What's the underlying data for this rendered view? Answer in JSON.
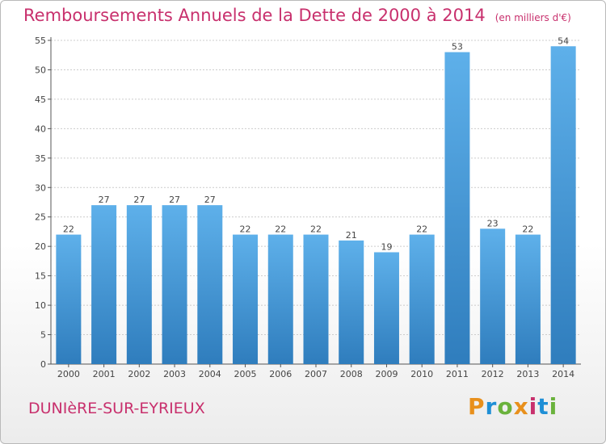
{
  "header": {
    "title": "Remboursements Annuels de la Dette de 2000 à 2014",
    "unit": "(en milliers d'€)"
  },
  "footer": {
    "commune": "DUNIèRE-SUR-EYRIEUX",
    "brand": "Proxiti",
    "brand_colors": [
      "#e8901c",
      "#1f8fd6",
      "#6ab23c",
      "#e8901c",
      "#c8306d",
      "#1f8fd6",
      "#6ab23c"
    ]
  },
  "colors": {
    "accent": "#c8306d",
    "bar_light": "#5eb0ea",
    "bar_dark": "#2f7dbd",
    "grid": "#cccccc"
  },
  "chart_data": {
    "type": "bar",
    "title": "Remboursements Annuels de la Dette de 2000 à 2014",
    "categories": [
      "2000",
      "2001",
      "2002",
      "2003",
      "2004",
      "2005",
      "2006",
      "2007",
      "2008",
      "2009",
      "2010",
      "2011",
      "2012",
      "2013",
      "2014"
    ],
    "values": [
      22,
      27,
      27,
      27,
      27,
      22,
      22,
      22,
      21,
      19,
      22,
      53,
      23,
      22,
      54
    ],
    "value_labels": [
      "22",
      "27",
      "27",
      "27",
      "27",
      "22",
      "22",
      "22",
      "21",
      "19",
      "22",
      "53",
      "23",
      "22",
      "54"
    ],
    "yticks": [
      "0",
      "5",
      "10",
      "15",
      "20",
      "25",
      "30",
      "35",
      "40",
      "45",
      "50",
      "55"
    ],
    "ylim": [
      0,
      55
    ],
    "xlabel": "",
    "ylabel": "",
    "grid": true
  }
}
